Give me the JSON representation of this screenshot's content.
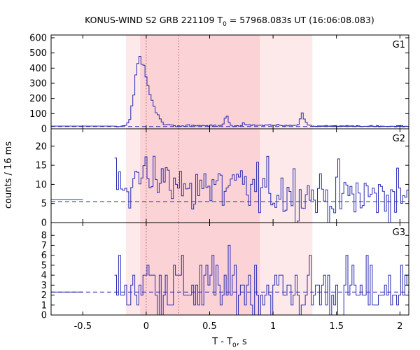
{
  "chart_data": {
    "type": "line",
    "title_prefix": "KONUS-WIND S2 GRB 221109 T",
    "title_sub": "0",
    "title_suffix": " = 57968.083s UT (16:06:08.083)",
    "xlabel_prefix": "T - T",
    "xlabel_sub": "0",
    "xlabel_suffix": ", s",
    "ylabel": "counts / 16 ms",
    "xlim": [
      -0.75,
      2.07
    ],
    "xticks": [
      -0.5,
      0,
      0.5,
      1,
      1.5,
      2
    ],
    "xtick_labels": [
      "-0.5",
      "0",
      "0.5",
      "1",
      "1.5",
      "2"
    ],
    "bin_width": 0.016,
    "colors": {
      "line": "#2a2ab4",
      "background_dashed": "#2a2ab4",
      "band_outer": "#fde9e9",
      "band_inner": "#fbd3d6",
      "marker_line": "#b06060"
    },
    "shaded_intervals": {
      "outer": [
        -0.16,
        1.31
      ],
      "inner": [
        -0.048,
        0.896
      ]
    },
    "marker_times": [
      0,
      0.256
    ],
    "panels": [
      {
        "name": "G1",
        "ylim": [
          0,
          600
        ],
        "yticks": [
          0,
          100,
          200,
          300,
          400,
          500,
          600
        ],
        "background": 15,
        "coarse": [
          {
            "x0": -0.75,
            "x1": -0.25,
            "y": 18
          },
          {
            "x0": 1.3,
            "x1": 2.07,
            "y": 16
          }
        ],
        "keypoints": [
          [
            -0.25,
            17
          ],
          [
            -0.2,
            18
          ],
          [
            -0.16,
            20
          ],
          [
            -0.15,
            40
          ],
          [
            -0.13,
            60
          ],
          [
            -0.12,
            130
          ],
          [
            -0.1,
            210
          ],
          [
            -0.09,
            300
          ],
          [
            -0.08,
            380
          ],
          [
            -0.06,
            450
          ],
          [
            -0.05,
            480
          ],
          [
            -0.04,
            440
          ],
          [
            -0.03,
            400
          ],
          [
            -0.02,
            420
          ],
          [
            -0.01,
            350
          ],
          [
            0.0,
            330
          ],
          [
            0.01,
            300
          ],
          [
            0.02,
            250
          ],
          [
            0.04,
            200
          ],
          [
            0.06,
            150
          ],
          [
            0.08,
            110
          ],
          [
            0.1,
            80
          ],
          [
            0.12,
            50
          ],
          [
            0.14,
            30
          ],
          [
            0.2,
            22
          ],
          [
            0.35,
            20
          ],
          [
            0.6,
            20
          ],
          [
            0.62,
            60
          ],
          [
            0.63,
            105
          ],
          [
            0.65,
            50
          ],
          [
            0.67,
            25
          ],
          [
            0.75,
            20
          ],
          [
            0.76,
            45
          ],
          [
            0.78,
            25
          ],
          [
            1.2,
            22
          ],
          [
            1.22,
            80
          ],
          [
            1.23,
            105
          ],
          [
            1.25,
            60
          ],
          [
            1.27,
            25
          ],
          [
            1.3,
            18
          ]
        ],
        "amp": 18
      },
      {
        "name": "G2",
        "ylim": [
          0,
          24
        ],
        "yticks": [
          0,
          5,
          10,
          15,
          20
        ],
        "background": 5.5,
        "coarse": [
          {
            "x0": -0.75,
            "x1": -0.5,
            "y": 6
          }
        ],
        "keypoints": [
          [
            -0.5,
            6
          ],
          [
            -0.3,
            7
          ],
          [
            -0.2,
            8.5
          ],
          [
            -0.1,
            11
          ],
          [
            -0.05,
            14
          ],
          [
            0.0,
            17
          ],
          [
            0.05,
            13
          ],
          [
            0.1,
            11
          ],
          [
            0.2,
            9.5
          ],
          [
            0.5,
            9
          ],
          [
            1.0,
            8.5
          ],
          [
            1.3,
            7.5
          ],
          [
            1.5,
            7
          ],
          [
            2.07,
            7
          ]
        ],
        "amp": 5.5
      },
      {
        "name": "G3",
        "ylim": [
          0,
          9
        ],
        "yticks": [
          0,
          1,
          2,
          3,
          4,
          5,
          6,
          7,
          8
        ],
        "background": 2.3,
        "coarse": [
          {
            "x0": -0.75,
            "x1": -0.5,
            "y": 2.3
          }
        ],
        "keypoints": [
          [
            -0.5,
            2.3
          ],
          [
            -0.1,
            2.8
          ],
          [
            0.0,
            3.3
          ],
          [
            0.2,
            3.0
          ],
          [
            0.5,
            2.8
          ],
          [
            1.0,
            2.6
          ],
          [
            1.4,
            2.3
          ],
          [
            2.07,
            2.4
          ]
        ],
        "amp": 2.6,
        "integer": true
      }
    ]
  }
}
